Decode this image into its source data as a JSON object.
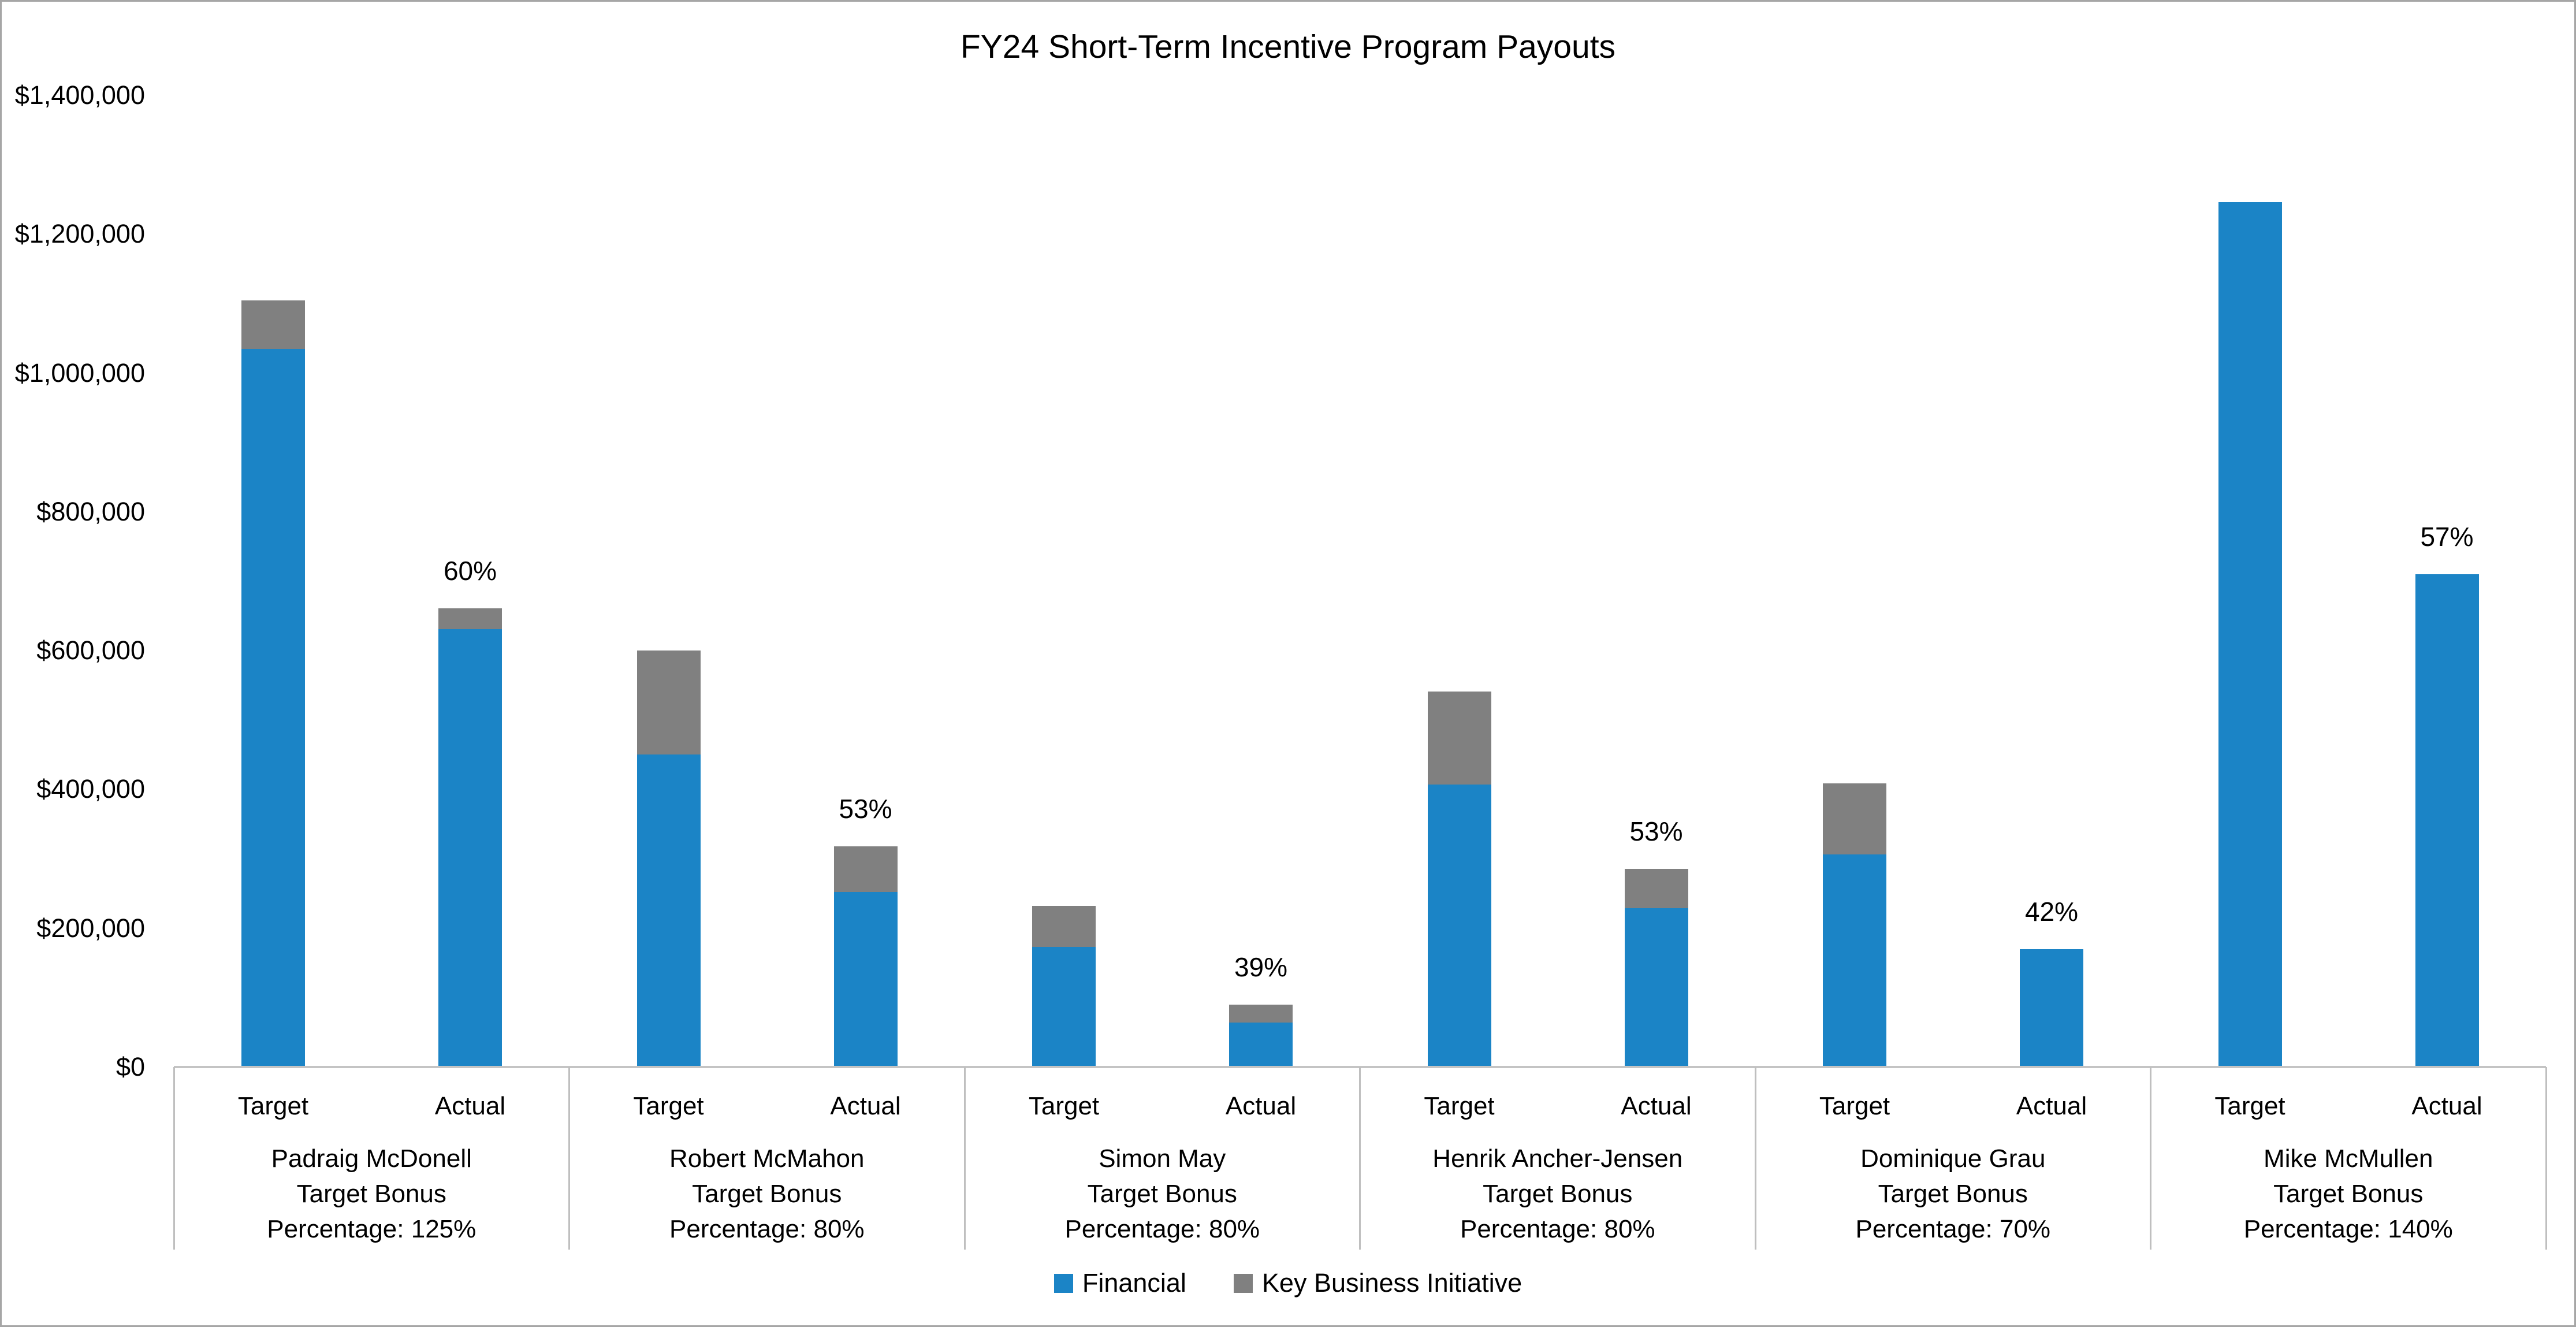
{
  "title": "FY24 Short-Term Incentive Program Payouts",
  "legend": [
    {
      "label": "Financial",
      "color": "#1b84c6"
    },
    {
      "label": "Key Business Initiative",
      "color": "#808080"
    }
  ],
  "y_axis": {
    "ticks": [
      {
        "value": 0,
        "label": "$0"
      },
      {
        "value": 200000,
        "label": "$200,000"
      },
      {
        "value": 400000,
        "label": "$400,000"
      },
      {
        "value": 600000,
        "label": "$600,000"
      },
      {
        "value": 800000,
        "label": "$800,000"
      },
      {
        "value": 1000000,
        "label": "$1,000,000"
      },
      {
        "value": 1200000,
        "label": "$1,200,000"
      },
      {
        "value": 1400000,
        "label": "$1,400,000"
      }
    ]
  },
  "chart_data": {
    "type": "bar",
    "stacked": true,
    "title": "FY24 Short-Term Incentive Program Payouts",
    "series_names": [
      "Financial",
      "Key Business Initiative"
    ],
    "colors": {
      "financial": "#1b84c6",
      "kbi": "#808080"
    },
    "ylim": [
      0,
      1400000
    ],
    "y_tick_step": 200000,
    "grid": false,
    "legend_position": "bottom",
    "bar_pair_labels": [
      "Target",
      "Actual"
    ],
    "group_sublabel_middle_line": "Target Bonus",
    "group_sublabel_prefix": "Percentage: ",
    "groups": [
      {
        "name": "Padraig McDonell",
        "target_bonus_percentage": "125%",
        "target": {
          "financial": 1035000,
          "kbi": 70000
        },
        "actual": {
          "financial": 631000,
          "kbi": 30000
        },
        "actual_pct_label": "60%"
      },
      {
        "name": "Robert McMahon",
        "target_bonus_percentage": "80%",
        "target": {
          "financial": 450000,
          "kbi": 150000
        },
        "actual": {
          "financial": 252000,
          "kbi": 66000
        },
        "actual_pct_label": "53%"
      },
      {
        "name": "Simon May",
        "target_bonus_percentage": "80%",
        "target": {
          "financial": 173000,
          "kbi": 59000
        },
        "actual": {
          "financial": 64000,
          "kbi": 26000
        },
        "actual_pct_label": "39%"
      },
      {
        "name": "Henrik Ancher-Jensen",
        "target_bonus_percentage": "80%",
        "target": {
          "financial": 407000,
          "kbi": 134000
        },
        "actual": {
          "financial": 229000,
          "kbi": 57000
        },
        "actual_pct_label": "53%"
      },
      {
        "name": "Dominique Grau",
        "target_bonus_percentage": "70%",
        "target": {
          "financial": 306000,
          "kbi": 102000
        },
        "actual": {
          "financial": 170000,
          "kbi": 0
        },
        "actual_pct_label": "42%"
      },
      {
        "name": "Mike McMullen",
        "target_bonus_percentage": "140%",
        "target": {
          "financial": 1246000,
          "kbi": 0
        },
        "actual": {
          "financial": 710000,
          "kbi": 0
        },
        "actual_pct_label": "57%"
      }
    ]
  }
}
